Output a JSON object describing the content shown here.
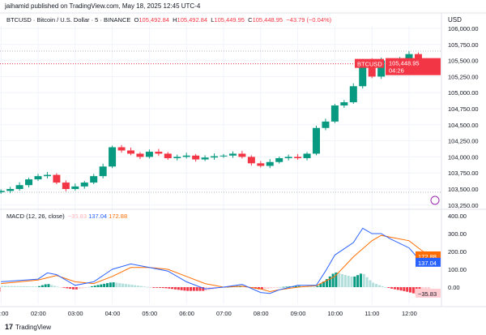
{
  "header": {
    "published": "jaihamid published on TradingView.com, May 18, 2025 12:45 UTC-4",
    "symbol_desc": "BTCUSD · Bitcoin / U.S. Dollar · 5 · BINANCE",
    "o_label": "O",
    "o": "105,492.84",
    "h_label": "H",
    "h": "105,492.84",
    "l_label": "L",
    "l": "105,449.95",
    "c_label": "C",
    "c": "105,448.95",
    "change": "−43.79 (−0.04%)",
    "currency": "USD"
  },
  "badges": {
    "symbol": "BTCUSD",
    "price": "105,448.95",
    "countdown": "04:26",
    "signal": "172.88",
    "macd": "137.04",
    "hist": "−35.83"
  },
  "macd_legend": {
    "label": "MACD (12, 26, close)",
    "hist": "−35.83",
    "macd": "137.04",
    "signal": "172.88"
  },
  "footer": {
    "brand": "TradingView"
  },
  "colors": {
    "up": "#089981",
    "down": "#f23645",
    "macd": "#2962ff",
    "signal": "#ff6d00",
    "hist_up_light": "#b2dfdb",
    "hist_down_light": "#ffcdd2"
  },
  "chart_data": [
    {
      "type": "candlestick",
      "price_axis": {
        "ticks": [
          "106,000.00",
          "105,750.00",
          "105,500.00",
          "105,250.00",
          "105,000.00",
          "104,750.00",
          "104,500.00",
          "104,250.00",
          "104,000.00",
          "103,750.00",
          "103,500.00",
          "103,250.00"
        ],
        "range": [
          103250,
          106000
        ]
      },
      "time_axis": {
        "ticks": [
          ":00",
          "02:00",
          "03:00",
          "04:00",
          "05:00",
          "06:00",
          "07:00",
          "08:00",
          "09:00",
          "10:00",
          "11:00",
          "12:00"
        ]
      },
      "times": [
        "01:00",
        "01:15",
        "01:30",
        "01:45",
        "02:00",
        "02:15",
        "02:30",
        "02:45",
        "03:00",
        "03:15",
        "03:30",
        "03:45",
        "04:00",
        "04:15",
        "04:30",
        "04:45",
        "05:00",
        "05:15",
        "05:30",
        "05:45",
        "06:00",
        "06:15",
        "06:30",
        "06:45",
        "07:00",
        "07:15",
        "07:30",
        "07:45",
        "08:00",
        "08:15",
        "08:30",
        "08:45",
        "09:00",
        "09:15",
        "09:30",
        "09:45",
        "10:00",
        "10:15",
        "10:30",
        "10:45",
        "11:00",
        "11:15",
        "11:30",
        "11:45",
        "12:00",
        "12:15",
        "12:30"
      ],
      "close": [
        103470,
        103500,
        103560,
        103650,
        103700,
        103720,
        103600,
        103500,
        103540,
        103600,
        103700,
        103850,
        104150,
        104100,
        104050,
        104000,
        104080,
        104050,
        103980,
        104000,
        104020,
        103960,
        103990,
        104010,
        104020,
        104050,
        104000,
        103900,
        103860,
        103920,
        103980,
        104000,
        103980,
        104050,
        104450,
        104550,
        104800,
        104850,
        105100,
        105500,
        105250,
        105500,
        105380,
        105520,
        105600,
        105500,
        105449
      ],
      "last_price": 105448.95
    },
    {
      "type": "line",
      "name": "MACD (12, 26, close)",
      "value_axis": {
        "ticks": [
          "400.00",
          "300.00",
          "200.00",
          "100.00",
          "0.00"
        ],
        "range": [
          -80,
          400
        ]
      },
      "macd": [
        [
          1,
          30
        ],
        [
          2,
          45
        ],
        [
          2.25,
          80
        ],
        [
          2.5,
          70
        ],
        [
          3,
          10
        ],
        [
          3.5,
          30
        ],
        [
          4,
          100
        ],
        [
          4.5,
          130
        ],
        [
          5,
          110
        ],
        [
          5.5,
          90
        ],
        [
          6,
          30
        ],
        [
          6.5,
          -10
        ],
        [
          7,
          0
        ],
        [
          7.5,
          15
        ],
        [
          8,
          -30
        ],
        [
          8.25,
          -35
        ],
        [
          8.5,
          -15
        ],
        [
          9,
          10
        ],
        [
          9.5,
          10
        ],
        [
          9.75,
          90
        ],
        [
          10,
          180
        ],
        [
          10.5,
          250
        ],
        [
          10.75,
          330
        ],
        [
          11,
          300
        ],
        [
          11.25,
          300
        ],
        [
          11.5,
          270
        ],
        [
          12,
          220
        ],
        [
          12.25,
          160
        ],
        [
          12.55,
          137
        ]
      ],
      "signal": [
        [
          1,
          20
        ],
        [
          2,
          40
        ],
        [
          2.5,
          65
        ],
        [
          3,
          30
        ],
        [
          3.5,
          20
        ],
        [
          4,
          60
        ],
        [
          4.5,
          110
        ],
        [
          5,
          110
        ],
        [
          5.5,
          100
        ],
        [
          6,
          60
        ],
        [
          6.5,
          20
        ],
        [
          7,
          0
        ],
        [
          7.5,
          5
        ],
        [
          8,
          -10
        ],
        [
          8.25,
          -25
        ],
        [
          8.5,
          -15
        ],
        [
          9,
          0
        ],
        [
          9.5,
          8
        ],
        [
          10,
          60
        ],
        [
          10.5,
          170
        ],
        [
          11,
          260
        ],
        [
          11.25,
          290
        ],
        [
          11.5,
          280
        ],
        [
          12,
          260
        ],
        [
          12.25,
          220
        ],
        [
          12.55,
          173
        ]
      ]
    }
  ]
}
